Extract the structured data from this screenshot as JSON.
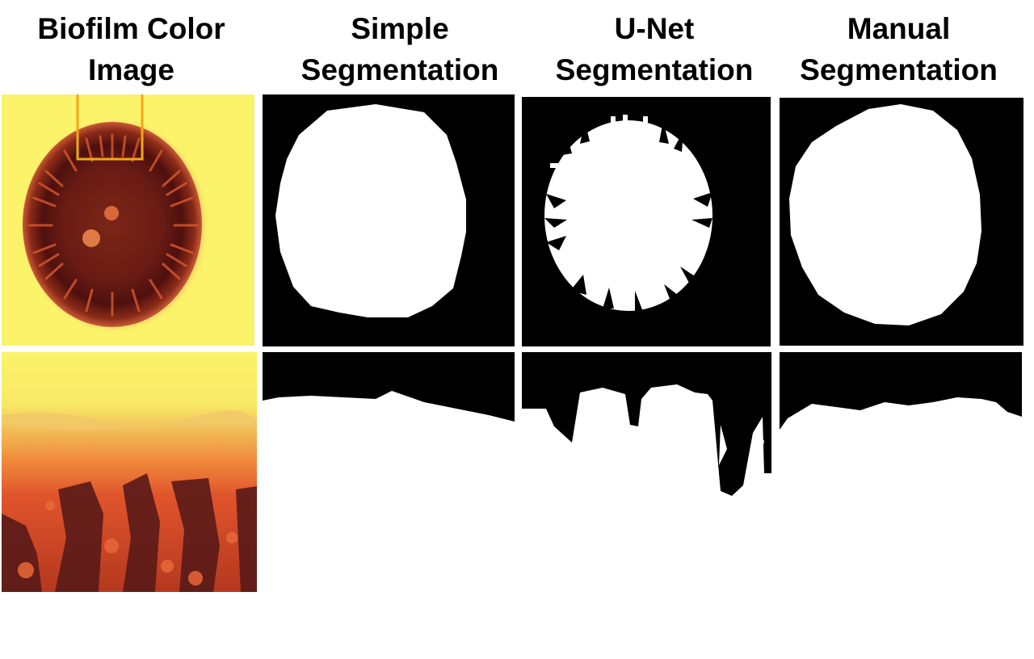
{
  "columns": [
    {
      "id": "color",
      "title_line1": "Biofilm Color",
      "title_line2": "Image"
    },
    {
      "id": "simple",
      "title_line1": "Simple",
      "title_line2": "Segmentation"
    },
    {
      "id": "unet",
      "title_line1": "U-Net",
      "title_line2": "Segmentation"
    },
    {
      "id": "manual",
      "title_line1": "Manual",
      "title_line2": "Segmentation"
    }
  ],
  "colors": {
    "background_yellow": "#fbf36a",
    "colony_dark": "#5a1410",
    "colony_mid": "#b03818",
    "colony_orange": "#e85a2a",
    "zoom_box": "#f0a818",
    "mask_black": "#000000",
    "mask_white": "#ffffff"
  }
}
